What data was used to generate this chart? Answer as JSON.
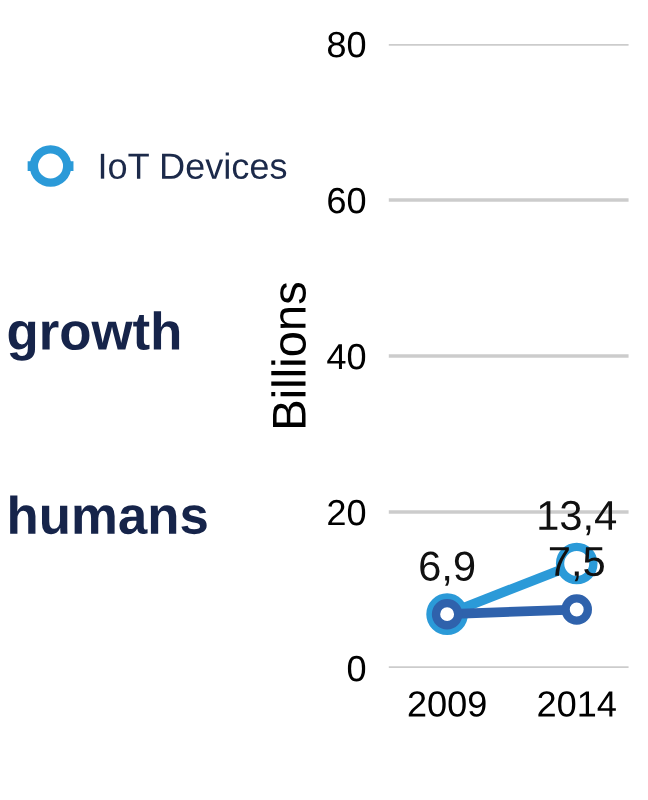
{
  "chart_data": {
    "type": "line",
    "ylabel": "Billions",
    "categories": [
      "2009",
      "2014"
    ],
    "series": [
      {
        "name": "IoT Devices",
        "color": "#2b9ad8",
        "values": [
          6.9,
          13.4
        ],
        "value_labels": [
          null,
          "13,4"
        ]
      },
      {
        "color": "#2f62ac",
        "values": [
          6.9,
          7.5
        ],
        "value_labels": [
          "6,9",
          "7,5"
        ]
      }
    ],
    "ylim": [
      0,
      80
    ],
    "yticks": [
      0,
      20,
      40,
      60,
      80
    ],
    "grid": "y",
    "legend": "left",
    "marker": "circle",
    "annotations": [
      "growth",
      "humans"
    ]
  }
}
